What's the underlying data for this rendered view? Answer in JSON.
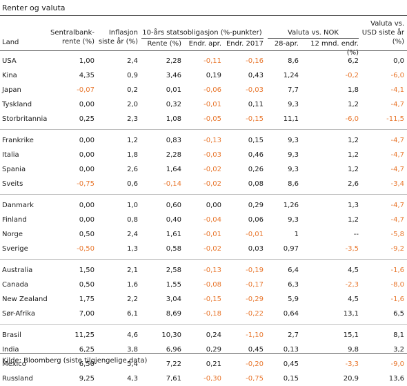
{
  "title": "Renter og valuta",
  "headers": {
    "land": "Land",
    "sentralbank_l1": "Sentralbank-",
    "sentralbank_l2": "rente (%)",
    "inflasjon_l1": "Inflasjon",
    "inflasjon_l2": "siste år (%)",
    "stat_group": "10-års statsobligasjon (%-punkter)",
    "rente": "Rente (%)",
    "endr_apr": "Endr. apr.",
    "endr_2017": "Endr. 2017",
    "valuta_group": "Valuta vs. NOK",
    "apr28": "28-apr.",
    "mnd12": "12 mnd. endr. (%)",
    "usd_l1": "Valuta vs.",
    "usd_l2": "USD siste år",
    "usd_l3": "(%)"
  },
  "groups": [
    {
      "rows": [
        {
          "land": "USA",
          "rente": "1,00",
          "infl": "2,4",
          "stat": "2,28",
          "endr_apr": "-0,11",
          "endr_2017": "-0,16",
          "apr28": "8,6",
          "mnd12": "6,2",
          "usd": "0,0"
        },
        {
          "land": "Kina",
          "rente": "4,35",
          "infl": "0,9",
          "stat": "3,46",
          "endr_apr": "0,19",
          "endr_2017": "0,43",
          "apr28": "1,24",
          "mnd12": "-0,2",
          "usd": "-6,0"
        },
        {
          "land": "Japan",
          "rente": "-0,07",
          "infl": "0,2",
          "stat": "0,01",
          "endr_apr": "-0,06",
          "endr_2017": "-0,03",
          "apr28": "7,7",
          "mnd12": "1,8",
          "usd": "-4,1"
        },
        {
          "land": "Tyskland",
          "rente": "0,00",
          "infl": "2,0",
          "stat": "0,32",
          "endr_apr": "-0,01",
          "endr_2017": "0,11",
          "apr28": "9,3",
          "mnd12": "1,2",
          "usd": "-4,7"
        },
        {
          "land": "Storbritannia",
          "rente": "0,25",
          "infl": "2,3",
          "stat": "1,08",
          "endr_apr": "-0,05",
          "endr_2017": "-0,15",
          "apr28": "11,1",
          "mnd12": "-6,0",
          "usd": "-11,5"
        }
      ]
    },
    {
      "rows": [
        {
          "land": "Frankrike",
          "rente": "0,00",
          "infl": "1,2",
          "stat": "0,83",
          "endr_apr": "-0,13",
          "endr_2017": "0,15",
          "apr28": "9,3",
          "mnd12": "1,2",
          "usd": "-4,7"
        },
        {
          "land": "Italia",
          "rente": "0,00",
          "infl": "1,8",
          "stat": "2,28",
          "endr_apr": "-0,03",
          "endr_2017": "0,46",
          "apr28": "9,3",
          "mnd12": "1,2",
          "usd": "-4,7"
        },
        {
          "land": "Spania",
          "rente": "0,00",
          "infl": "2,6",
          "stat": "1,64",
          "endr_apr": "-0,02",
          "endr_2017": "0,26",
          "apr28": "9,3",
          "mnd12": "1,2",
          "usd": "-4,7"
        },
        {
          "land": "Sveits",
          "rente": "-0,75",
          "infl": "0,6",
          "stat": "-0,14",
          "endr_apr": "-0,02",
          "endr_2017": "0,08",
          "apr28": "8,6",
          "mnd12": "2,6",
          "usd": "-3,4"
        }
      ]
    },
    {
      "rows": [
        {
          "land": "Danmark",
          "rente": "0,00",
          "infl": "1,0",
          "stat": "0,60",
          "endr_apr": "0,00",
          "endr_2017": "0,29",
          "apr28": "1,26",
          "mnd12": "1,3",
          "usd": "-4,7"
        },
        {
          "land": "Finland",
          "rente": "0,00",
          "infl": "0,8",
          "stat": "0,40",
          "endr_apr": "-0,04",
          "endr_2017": "0,06",
          "apr28": "9,3",
          "mnd12": "1,2",
          "usd": "-4,7"
        },
        {
          "land": "Norge",
          "rente": "0,50",
          "infl": "2,4",
          "stat": "1,61",
          "endr_apr": "-0,01",
          "endr_2017": "-0,01",
          "apr28": "1",
          "mnd12": "--",
          "usd": "-5,8"
        },
        {
          "land": "Sverige",
          "rente": "-0,50",
          "infl": "1,3",
          "stat": "0,58",
          "endr_apr": "-0,02",
          "endr_2017": "0,03",
          "apr28": "0,97",
          "mnd12": "-3,5",
          "usd": "-9,2"
        }
      ]
    },
    {
      "rows": [
        {
          "land": "Australia",
          "rente": "1,50",
          "infl": "2,1",
          "stat": "2,58",
          "endr_apr": "-0,13",
          "endr_2017": "-0,19",
          "apr28": "6,4",
          "mnd12": "4,5",
          "usd": "-1,6"
        },
        {
          "land": "Canada",
          "rente": "0,50",
          "infl": "1,6",
          "stat": "1,55",
          "endr_apr": "-0,08",
          "endr_2017": "-0,17",
          "apr28": "6,3",
          "mnd12": "-2,3",
          "usd": "-8,0"
        },
        {
          "land": "New Zealand",
          "rente": "1,75",
          "infl": "2,2",
          "stat": "3,04",
          "endr_apr": "-0,15",
          "endr_2017": "-0,29",
          "apr28": "5,9",
          "mnd12": "4,5",
          "usd": "-1,6"
        },
        {
          "land": "Sør-Afrika",
          "rente": "7,00",
          "infl": "6,1",
          "stat": "8,69",
          "endr_apr": "-0,18",
          "endr_2017": "-0,22",
          "apr28": "0,64",
          "mnd12": "13,1",
          "usd": "6,5"
        }
      ]
    },
    {
      "rows": [
        {
          "land": "Brasil",
          "rente": "11,25",
          "infl": "4,6",
          "stat": "10,30",
          "endr_apr": "0,24",
          "endr_2017": "-1,10",
          "apr28": "2,7",
          "mnd12": "15,1",
          "usd": "8,1"
        },
        {
          "land": "India",
          "rente": "6,25",
          "infl": "3,8",
          "stat": "6,96",
          "endr_apr": "0,29",
          "endr_2017": "0,45",
          "apr28": "0,13",
          "mnd12": "9,8",
          "usd": "3,2"
        },
        {
          "land": "Mexico",
          "rente": "6,50",
          "infl": "5,4",
          "stat": "7,22",
          "endr_apr": "0,21",
          "endr_2017": "-0,20",
          "apr28": "0,45",
          "mnd12": "-3,3",
          "usd": "-9,0"
        },
        {
          "land": "Russland",
          "rente": "9,25",
          "infl": "4,3",
          "stat": "7,61",
          "endr_apr": "-0,30",
          "endr_2017": "-0,75",
          "apr28": "0,15",
          "mnd12": "20,9",
          "usd": "13,6"
        }
      ]
    }
  ],
  "source": "Kilde: Bloomberg (siste tilgjengelige data)",
  "colors": {
    "negative": "#e8772e",
    "text": "#1a1a1a",
    "rule": "#555555",
    "separator": "#bdbdbd"
  }
}
